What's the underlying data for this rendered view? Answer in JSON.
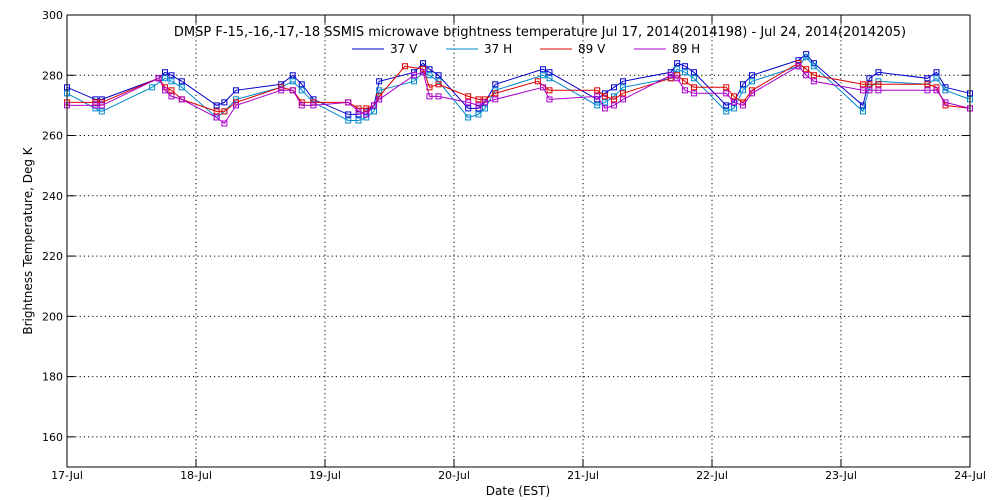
{
  "chart_data": {
    "type": "line",
    "title": "DMSP F-15,-16,-17,-18 SSMIS microwave brightness temperature Jul 17, 2014(2014198) - Jul 24, 2014(2014205)",
    "xlabel": "Date (EST)",
    "ylabel": "Brightness Temperature, Deg K",
    "xlim": [
      0,
      7
    ],
    "ylim": [
      150,
      300
    ],
    "yticks": [
      160,
      180,
      200,
      220,
      240,
      260,
      280,
      300
    ],
    "xticks": [
      {
        "x": 0,
        "label": "17-Jul"
      },
      {
        "x": 1,
        "label": "18-Jul"
      },
      {
        "x": 2,
        "label": "19-Jul"
      },
      {
        "x": 3,
        "label": "20-Jul"
      },
      {
        "x": 4,
        "label": "21-Jul"
      },
      {
        "x": 5,
        "label": "22-Jul"
      },
      {
        "x": 6,
        "label": "23-Jul"
      },
      {
        "x": 7,
        "label": "24-Jul"
      }
    ],
    "grid": true,
    "legend": "top-center",
    "series": [
      {
        "name": "37 V",
        "color": "#0000cc",
        "x": [
          0.0,
          0.22,
          0.27,
          0.71,
          0.76,
          0.81,
          0.89,
          1.16,
          1.22,
          1.31,
          1.66,
          1.75,
          1.82,
          1.91,
          2.18,
          2.26,
          2.32,
          2.38,
          2.42,
          2.69,
          2.76,
          2.81,
          2.88,
          3.11,
          3.19,
          3.24,
          3.32,
          3.69,
          3.74,
          4.11,
          4.17,
          4.24,
          4.31,
          4.68,
          4.73,
          4.79,
          4.86,
          5.11,
          5.17,
          5.24,
          5.31,
          5.67,
          5.73,
          5.79,
          6.17,
          6.22,
          6.29,
          6.67,
          6.74,
          6.81,
          7.0
        ],
        "values": [
          276,
          272,
          272,
          279,
          281,
          280,
          278,
          270,
          271,
          275,
          277,
          280,
          277,
          272,
          267,
          267,
          268,
          270,
          278,
          281,
          284,
          282,
          280,
          269,
          269,
          271,
          277,
          282,
          281,
          272,
          274,
          276,
          278,
          281,
          284,
          283,
          281,
          270,
          271,
          277,
          280,
          285,
          287,
          284,
          270,
          279,
          281,
          279,
          281,
          276,
          274
        ]
      },
      {
        "name": "37 H",
        "color": "#0088cc",
        "x": [
          0.0,
          0.22,
          0.27,
          0.66,
          0.76,
          0.81,
          0.89,
          1.16,
          1.22,
          1.31,
          1.66,
          1.75,
          1.82,
          1.91,
          2.18,
          2.26,
          2.32,
          2.38,
          2.42,
          2.69,
          2.76,
          2.81,
          2.88,
          3.11,
          3.19,
          3.24,
          3.32,
          3.69,
          3.74,
          4.11,
          4.17,
          4.24,
          4.31,
          4.68,
          4.73,
          4.79,
          4.86,
          5.11,
          5.17,
          5.24,
          5.31,
          5.67,
          5.73,
          5.79,
          6.17,
          6.22,
          6.29,
          6.67,
          6.74,
          6.81,
          7.0
        ],
        "values": [
          274,
          269,
          268,
          276,
          279,
          278,
          276,
          266,
          268,
          272,
          276,
          278,
          275,
          271,
          265,
          265,
          266,
          268,
          275,
          278,
          281,
          280,
          278,
          266,
          267,
          269,
          275,
          280,
          279,
          270,
          271,
          273,
          276,
          279,
          282,
          281,
          279,
          268,
          269,
          275,
          278,
          283,
          286,
          283,
          268,
          276,
          278,
          277,
          279,
          275,
          272
        ]
      },
      {
        "name": "89 V",
        "color": "#dd0000",
        "x": [
          0.0,
          0.22,
          0.27,
          0.71,
          0.76,
          0.81,
          0.89,
          1.16,
          1.22,
          1.31,
          1.66,
          1.75,
          1.82,
          1.91,
          2.18,
          2.26,
          2.32,
          2.38,
          2.42,
          2.62,
          2.76,
          2.81,
          2.88,
          3.11,
          3.19,
          3.24,
          3.32,
          3.65,
          3.74,
          4.11,
          4.17,
          4.24,
          4.31,
          4.68,
          4.73,
          4.79,
          4.86,
          5.11,
          5.17,
          5.24,
          5.31,
          5.67,
          5.73,
          5.79,
          6.17,
          6.22,
          6.29,
          6.67,
          6.74,
          6.81,
          7.0
        ],
        "values": [
          271,
          271,
          271,
          279,
          276,
          275,
          272,
          268,
          268,
          271,
          276,
          275,
          271,
          271,
          271,
          269,
          269,
          270,
          273,
          283,
          282,
          276,
          277,
          273,
          272,
          272,
          274,
          278,
          275,
          275,
          273,
          272,
          274,
          279,
          280,
          278,
          276,
          276,
          273,
          271,
          275,
          284,
          282,
          280,
          277,
          277,
          277,
          277,
          276,
          270,
          269
        ]
      },
      {
        "name": "89 H",
        "color": "#aa00cc",
        "x": [
          0.0,
          0.22,
          0.27,
          0.71,
          0.76,
          0.81,
          0.89,
          1.16,
          1.22,
          1.31,
          1.66,
          1.75,
          1.82,
          1.91,
          2.18,
          2.26,
          2.32,
          2.38,
          2.42,
          2.69,
          2.76,
          2.81,
          2.88,
          3.11,
          3.19,
          3.24,
          3.32,
          3.69,
          3.74,
          4.11,
          4.17,
          4.24,
          4.31,
          4.68,
          4.73,
          4.79,
          4.86,
          5.11,
          5.17,
          5.24,
          5.31,
          5.67,
          5.73,
          5.79,
          6.17,
          6.22,
          6.29,
          6.67,
          6.74,
          6.81,
          7.0
        ],
        "values": [
          270,
          270,
          270,
          279,
          275,
          273,
          272,
          266,
          264,
          270,
          275,
          275,
          270,
          270,
          271,
          268,
          267,
          270,
          272,
          280,
          281,
          273,
          273,
          271,
          270,
          271,
          272,
          276,
          272,
          273,
          269,
          270,
          272,
          280,
          279,
          275,
          274,
          274,
          271,
          270,
          274,
          283,
          280,
          278,
          275,
          275,
          275,
          275,
          275,
          271,
          269
        ]
      }
    ]
  }
}
